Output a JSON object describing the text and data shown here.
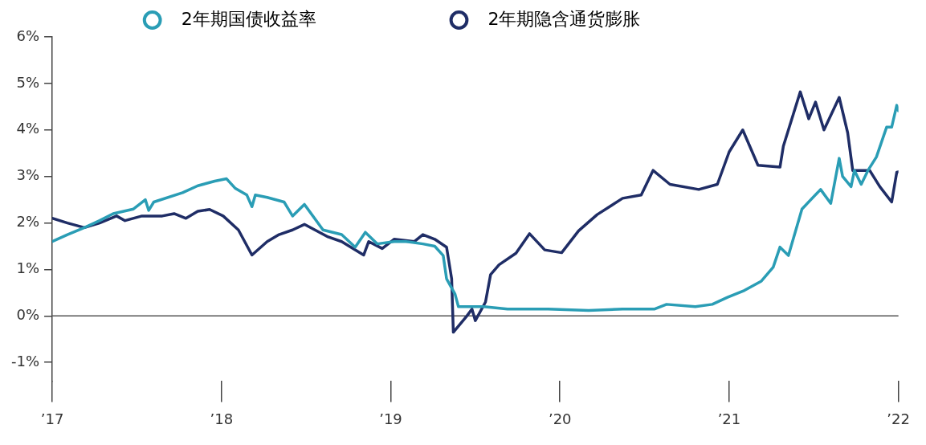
{
  "chart_data": {
    "type": "line",
    "legend": "top",
    "marker": "none",
    "line_style": "solid",
    "grid": false,
    "xlim": [
      2017,
      2022
    ],
    "xticks": [
      {
        "value": 2017,
        "label": "’17"
      },
      {
        "value": 2018,
        "label": "’18"
      },
      {
        "value": 2019,
        "label": "’19"
      },
      {
        "value": 2020,
        "label": "’20"
      },
      {
        "value": 2021,
        "label": "’21"
      },
      {
        "value": 2022,
        "label": "’22"
      }
    ],
    "ylim": [
      -1.4,
      6
    ],
    "yticks": [
      {
        "value": -1,
        "label": "-1%"
      },
      {
        "value": 0,
        "label": "0%"
      },
      {
        "value": 1,
        "label": "1%"
      },
      {
        "value": 2,
        "label": "2%"
      },
      {
        "value": 3,
        "label": "3%"
      },
      {
        "value": 4,
        "label": "4%"
      },
      {
        "value": 5,
        "label": "5%"
      },
      {
        "value": 6,
        "label": "6%"
      }
    ],
    "ref_lines": [
      {
        "axis": "y",
        "value": 0,
        "color": "#555555"
      }
    ],
    "series": [
      {
        "name": "2年期国债收益率",
        "color": "#2a9db5",
        "x": [
          2017.0,
          2017.09,
          2017.19,
          2017.28,
          2017.36,
          2017.48,
          2017.55,
          2017.57,
          2017.6,
          2017.77,
          2017.86,
          2017.96,
          2018.03,
          2018.08,
          2018.15,
          2018.18,
          2018.2,
          2018.27,
          2018.37,
          2018.42,
          2018.49,
          2018.6,
          2018.71,
          2018.79,
          2018.85,
          2018.92,
          2019.02,
          2019.09,
          2019.19,
          2019.26,
          2019.31,
          2019.33,
          2019.38,
          2019.4,
          2019.55,
          2019.69,
          2019.93,
          2020.17,
          2020.37,
          2020.56,
          2020.63,
          2020.8,
          2020.9,
          2020.99,
          2021.09,
          2021.19,
          2021.26,
          2021.3,
          2021.35,
          2021.43,
          2021.54,
          2021.6,
          2021.65,
          2021.67,
          2021.72,
          2021.74,
          2021.78,
          2021.82,
          2021.87,
          2021.93,
          2021.96,
          2021.99,
          2022.0
        ],
        "values": [
          1.6,
          1.75,
          1.9,
          2.05,
          2.2,
          2.3,
          2.5,
          2.27,
          2.45,
          2.65,
          2.8,
          2.9,
          2.95,
          2.75,
          2.6,
          2.35,
          2.6,
          2.55,
          2.45,
          2.15,
          2.4,
          1.85,
          1.75,
          1.48,
          1.8,
          1.55,
          1.6,
          1.6,
          1.55,
          1.5,
          1.3,
          0.8,
          0.47,
          0.2,
          0.2,
          0.15,
          0.15,
          0.12,
          0.15,
          0.15,
          0.25,
          0.2,
          0.25,
          0.4,
          0.55,
          0.75,
          1.05,
          1.48,
          1.3,
          2.3,
          2.72,
          2.42,
          3.39,
          3.0,
          2.78,
          3.13,
          2.83,
          3.13,
          3.42,
          4.06,
          4.06,
          4.53,
          4.41
        ]
      },
      {
        "name": "2年期隐含通货膨胀",
        "color": "#1f2d66",
        "x": [
          2017.0,
          2017.09,
          2017.19,
          2017.28,
          2017.38,
          2017.43,
          2017.53,
          2017.65,
          2017.72,
          2017.79,
          2017.86,
          2017.93,
          2018.01,
          2018.1,
          2018.18,
          2018.27,
          2018.34,
          2018.42,
          2018.49,
          2018.63,
          2018.71,
          2018.84,
          2018.87,
          2018.95,
          2019.02,
          2019.14,
          2019.19,
          2019.26,
          2019.33,
          2019.36,
          2019.37,
          2019.45,
          2019.48,
          2019.5,
          2019.56,
          2019.59,
          2019.64,
          2019.74,
          2019.82,
          2019.91,
          2020.01,
          2020.11,
          2020.22,
          2020.37,
          2020.48,
          2020.55,
          2020.65,
          2020.82,
          2020.93,
          2021.0,
          2021.08,
          2021.17,
          2021.3,
          2021.32,
          2021.42,
          2021.47,
          2021.51,
          2021.56,
          2021.65,
          2021.7,
          2021.73,
          2021.83,
          2021.89,
          2021.96,
          2021.99,
          2022.0
        ],
        "values": [
          2.1,
          2.0,
          1.9,
          2.0,
          2.15,
          2.05,
          2.15,
          2.15,
          2.2,
          2.1,
          2.25,
          2.29,
          2.15,
          1.85,
          1.31,
          1.6,
          1.75,
          1.85,
          1.97,
          1.7,
          1.6,
          1.31,
          1.6,
          1.45,
          1.65,
          1.6,
          1.75,
          1.65,
          1.48,
          0.8,
          -0.35,
          0.0,
          0.15,
          -0.1,
          0.3,
          0.89,
          1.1,
          1.35,
          1.77,
          1.42,
          1.36,
          1.83,
          2.18,
          2.53,
          2.6,
          3.13,
          2.83,
          2.72,
          2.83,
          3.53,
          4.0,
          3.24,
          3.2,
          3.65,
          4.82,
          4.24,
          4.6,
          4.0,
          4.7,
          3.94,
          3.13,
          3.13,
          2.78,
          2.45,
          3.09,
          3.1
        ]
      }
    ]
  }
}
